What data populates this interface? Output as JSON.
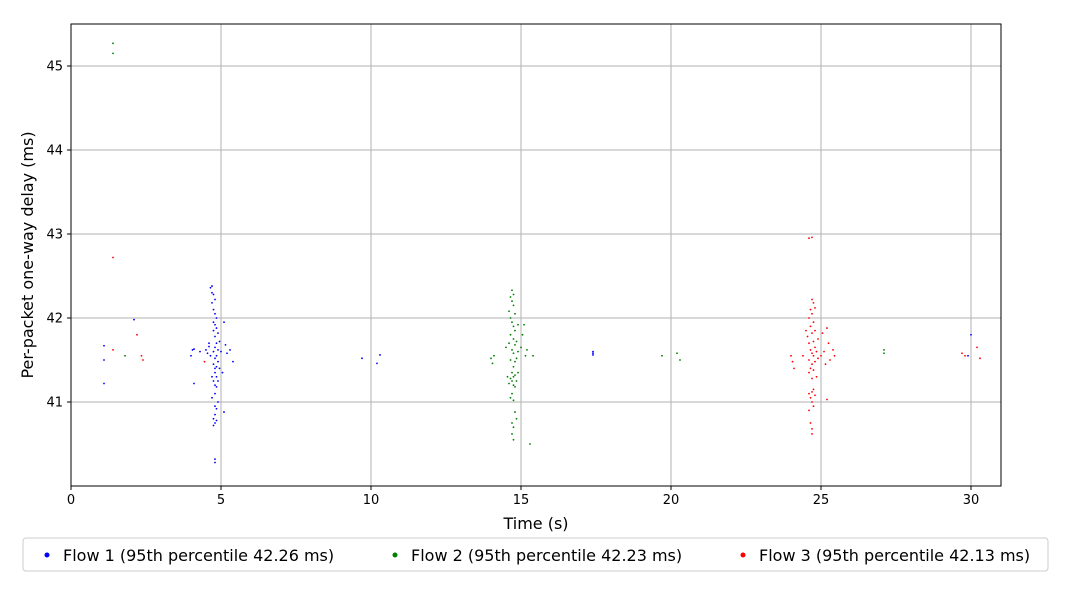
{
  "chart_data": {
    "type": "scatter",
    "title": "",
    "xlabel": "Time (s)",
    "ylabel": "Per-packet one-way delay (ms)",
    "xlim": [
      0,
      31
    ],
    "ylim": [
      40.0,
      45.5
    ],
    "xticks": [
      0,
      5,
      10,
      15,
      20,
      25,
      30
    ],
    "yticks": [
      41,
      42,
      43,
      44,
      45
    ],
    "grid": true,
    "legend_position": "bottom",
    "series": [
      {
        "name": "Flow 1 (95th percentile 42.26 ms)",
        "color": "#0000ff",
        "points": [
          [
            1.1,
            41.67
          ],
          [
            1.1,
            41.5
          ],
          [
            1.1,
            41.22
          ],
          [
            2.1,
            41.98
          ],
          [
            4.0,
            41.55
          ],
          [
            4.05,
            41.62
          ],
          [
            4.1,
            41.63
          ],
          [
            4.1,
            41.22
          ],
          [
            4.3,
            41.6
          ],
          [
            4.5,
            41.62
          ],
          [
            4.55,
            41.58
          ],
          [
            4.6,
            41.7
          ],
          [
            4.6,
            41.66
          ],
          [
            4.65,
            41.55
          ],
          [
            4.65,
            42.36
          ],
          [
            4.7,
            42.38
          ],
          [
            4.7,
            42.3
          ],
          [
            4.7,
            42.18
          ],
          [
            4.7,
            41.3
          ],
          [
            4.7,
            41.05
          ],
          [
            4.75,
            42.28
          ],
          [
            4.75,
            42.1
          ],
          [
            4.75,
            41.95
          ],
          [
            4.75,
            41.85
          ],
          [
            4.75,
            41.6
          ],
          [
            4.75,
            41.45
          ],
          [
            4.75,
            41.25
          ],
          [
            4.75,
            40.8
          ],
          [
            4.75,
            40.72
          ],
          [
            4.8,
            42.22
          ],
          [
            4.8,
            42.05
          ],
          [
            4.8,
            41.92
          ],
          [
            4.8,
            41.78
          ],
          [
            4.8,
            41.65
          ],
          [
            4.8,
            41.52
          ],
          [
            4.8,
            41.4
          ],
          [
            4.8,
            41.35
          ],
          [
            4.8,
            41.2
          ],
          [
            4.8,
            41.1
          ],
          [
            4.8,
            40.95
          ],
          [
            4.8,
            40.85
          ],
          [
            4.8,
            40.75
          ],
          [
            4.8,
            40.32
          ],
          [
            4.8,
            40.28
          ],
          [
            4.85,
            42.0
          ],
          [
            4.85,
            41.88
          ],
          [
            4.85,
            41.7
          ],
          [
            4.85,
            41.55
          ],
          [
            4.85,
            41.42
          ],
          [
            4.85,
            41.3
          ],
          [
            4.85,
            41.18
          ],
          [
            4.85,
            40.92
          ],
          [
            4.85,
            40.78
          ],
          [
            4.9,
            41.82
          ],
          [
            4.9,
            41.62
          ],
          [
            4.9,
            41.48
          ],
          [
            4.9,
            41.25
          ],
          [
            4.9,
            41.0
          ],
          [
            4.95,
            41.72
          ],
          [
            4.95,
            41.4
          ],
          [
            5.0,
            41.6
          ],
          [
            5.05,
            41.35
          ],
          [
            5.1,
            41.95
          ],
          [
            5.1,
            40.88
          ],
          [
            5.15,
            41.68
          ],
          [
            5.2,
            41.58
          ],
          [
            5.3,
            41.62
          ],
          [
            5.4,
            41.48
          ],
          [
            9.7,
            41.52
          ],
          [
            10.2,
            41.46
          ],
          [
            10.3,
            41.56
          ],
          [
            17.4,
            41.6
          ],
          [
            17.4,
            41.58
          ],
          [
            17.4,
            41.56
          ],
          [
            29.9,
            41.55
          ],
          [
            30.0,
            41.8
          ]
        ]
      },
      {
        "name": "Flow 2 (95th percentile 42.23 ms)",
        "color": "#008000",
        "points": [
          [
            1.4,
            45.27
          ],
          [
            1.4,
            45.15
          ],
          [
            1.8,
            41.55
          ],
          [
            14.0,
            41.52
          ],
          [
            14.05,
            41.46
          ],
          [
            14.1,
            41.55
          ],
          [
            14.5,
            41.65
          ],
          [
            14.55,
            41.3
          ],
          [
            14.6,
            42.08
          ],
          [
            14.6,
            41.7
          ],
          [
            14.6,
            41.22
          ],
          [
            14.65,
            42.25
          ],
          [
            14.65,
            42.0
          ],
          [
            14.65,
            41.8
          ],
          [
            14.65,
            41.5
          ],
          [
            14.65,
            41.28
          ],
          [
            14.65,
            41.05
          ],
          [
            14.7,
            42.33
          ],
          [
            14.7,
            42.2
          ],
          [
            14.7,
            41.95
          ],
          [
            14.7,
            41.62
          ],
          [
            14.7,
            41.35
          ],
          [
            14.7,
            41.25
          ],
          [
            14.7,
            41.1
          ],
          [
            14.7,
            40.75
          ],
          [
            14.7,
            40.62
          ],
          [
            14.75,
            42.28
          ],
          [
            14.75,
            42.15
          ],
          [
            14.75,
            41.9
          ],
          [
            14.75,
            41.75
          ],
          [
            14.75,
            41.58
          ],
          [
            14.75,
            41.42
          ],
          [
            14.75,
            41.3
          ],
          [
            14.75,
            41.2
          ],
          [
            14.75,
            41.02
          ],
          [
            14.75,
            40.7
          ],
          [
            14.75,
            40.55
          ],
          [
            14.8,
            42.05
          ],
          [
            14.8,
            41.85
          ],
          [
            14.8,
            41.68
          ],
          [
            14.8,
            41.48
          ],
          [
            14.8,
            41.32
          ],
          [
            14.8,
            41.18
          ],
          [
            14.8,
            40.88
          ],
          [
            14.85,
            41.72
          ],
          [
            14.85,
            41.52
          ],
          [
            14.85,
            41.25
          ],
          [
            14.85,
            40.8
          ],
          [
            14.9,
            41.92
          ],
          [
            14.9,
            41.6
          ],
          [
            14.9,
            41.35
          ],
          [
            15.0,
            41.65
          ],
          [
            15.05,
            41.8
          ],
          [
            15.1,
            41.92
          ],
          [
            15.15,
            41.55
          ],
          [
            15.2,
            41.62
          ],
          [
            15.3,
            40.5
          ],
          [
            15.4,
            41.55
          ],
          [
            19.7,
            41.55
          ],
          [
            20.2,
            41.58
          ],
          [
            20.3,
            41.5
          ],
          [
            27.1,
            41.62
          ],
          [
            27.1,
            41.58
          ]
        ]
      },
      {
        "name": "Flow 3 (95th percentile 42.13 ms)",
        "color": "#ff0000",
        "points": [
          [
            1.4,
            42.72
          ],
          [
            1.4,
            41.62
          ],
          [
            2.2,
            41.8
          ],
          [
            2.35,
            41.55
          ],
          [
            2.4,
            41.5
          ],
          [
            4.45,
            41.48
          ],
          [
            24.0,
            41.55
          ],
          [
            24.05,
            41.48
          ],
          [
            24.1,
            41.4
          ],
          [
            24.4,
            41.55
          ],
          [
            24.5,
            41.85
          ],
          [
            24.55,
            41.78
          ],
          [
            24.6,
            42.95
          ],
          [
            24.6,
            42.0
          ],
          [
            24.6,
            41.7
          ],
          [
            24.6,
            41.5
          ],
          [
            24.6,
            41.35
          ],
          [
            24.6,
            41.1
          ],
          [
            24.6,
            40.9
          ],
          [
            24.65,
            42.1
          ],
          [
            24.65,
            41.9
          ],
          [
            24.65,
            41.62
          ],
          [
            24.65,
            41.4
          ],
          [
            24.65,
            41.05
          ],
          [
            24.65,
            40.75
          ],
          [
            24.7,
            42.96
          ],
          [
            24.7,
            42.22
          ],
          [
            24.7,
            42.05
          ],
          [
            24.7,
            41.82
          ],
          [
            24.7,
            41.58
          ],
          [
            24.7,
            41.45
          ],
          [
            24.7,
            41.28
          ],
          [
            24.7,
            41.12
          ],
          [
            24.7,
            41.0
          ],
          [
            24.7,
            40.68
          ],
          [
            24.7,
            40.62
          ],
          [
            24.75,
            42.18
          ],
          [
            24.75,
            41.95
          ],
          [
            24.75,
            41.72
          ],
          [
            24.75,
            41.55
          ],
          [
            24.75,
            41.38
          ],
          [
            24.75,
            41.15
          ],
          [
            24.75,
            40.95
          ],
          [
            24.8,
            42.12
          ],
          [
            24.8,
            41.85
          ],
          [
            24.8,
            41.65
          ],
          [
            24.8,
            41.48
          ],
          [
            24.8,
            41.08
          ],
          [
            24.85,
            41.6
          ],
          [
            24.85,
            41.3
          ],
          [
            24.9,
            41.75
          ],
          [
            24.9,
            41.52
          ],
          [
            25.0,
            41.55
          ],
          [
            25.05,
            41.82
          ],
          [
            25.1,
            41.6
          ],
          [
            25.15,
            41.45
          ],
          [
            25.2,
            41.88
          ],
          [
            25.25,
            41.7
          ],
          [
            25.3,
            41.5
          ],
          [
            25.4,
            41.62
          ],
          [
            25.45,
            41.55
          ],
          [
            25.2,
            41.03
          ],
          [
            29.7,
            41.58
          ],
          [
            29.8,
            41.55
          ],
          [
            30.2,
            41.65
          ],
          [
            30.3,
            41.52
          ]
        ]
      }
    ]
  }
}
